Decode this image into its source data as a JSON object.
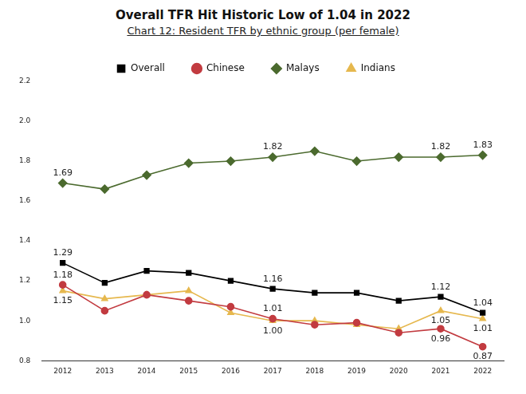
{
  "chart_data": {
    "type": "line",
    "title": "Overall TFR Hit Historic Low of 1.04 in 2022",
    "subtitle": "Chart 12: Resident TFR by ethnic group (per female)",
    "categories": [
      "2012",
      "2013",
      "2014",
      "2015",
      "2016",
      "2017",
      "2018",
      "2019",
      "2020",
      "2021",
      "2022"
    ],
    "series": [
      {
        "name": "Overall",
        "color": "#000000",
        "marker": "square",
        "values": [
          1.29,
          1.19,
          1.25,
          1.24,
          1.2,
          1.16,
          1.14,
          1.14,
          1.1,
          1.12,
          1.04
        ],
        "value_labels": [
          "1.29",
          null,
          null,
          null,
          null,
          "1.16",
          null,
          null,
          null,
          "1.12",
          "1.04"
        ]
      },
      {
        "name": "Chinese",
        "color": "#c23b40",
        "marker": "circle",
        "values": [
          1.18,
          1.05,
          1.13,
          1.1,
          1.07,
          1.01,
          0.98,
          0.99,
          0.94,
          0.96,
          0.87
        ],
        "value_labels": [
          "1.18",
          null,
          null,
          null,
          null,
          "1.01",
          null,
          null,
          null,
          "0.96",
          "0.87"
        ]
      },
      {
        "name": "Malays",
        "color": "#4b6a2e",
        "marker": "diamond",
        "values": [
          1.69,
          1.66,
          1.73,
          1.79,
          1.8,
          1.82,
          1.85,
          1.8,
          1.82,
          1.82,
          1.83
        ],
        "value_labels": [
          "1.69",
          null,
          null,
          null,
          null,
          "1.82",
          null,
          null,
          null,
          "1.82",
          "1.83"
        ]
      },
      {
        "name": "Indians",
        "color": "#e6b84e",
        "marker": "triangle",
        "values": [
          1.15,
          1.11,
          1.13,
          1.15,
          1.04,
          1.0,
          1.0,
          0.98,
          0.96,
          1.05,
          1.01
        ],
        "value_labels": [
          "1.15",
          null,
          null,
          null,
          null,
          "1.00",
          null,
          null,
          null,
          "1.05",
          "1.01"
        ]
      }
    ],
    "ylim": [
      0.8,
      2.2
    ],
    "yticks": [
      0.8,
      {
        "value": 1,
        "label": "1.0"
      },
      1.2,
      1.4,
      1.6,
      1.8,
      {
        "value": 2,
        "label": "2.0"
      },
      2.2
    ],
    "grid": false,
    "legend": "top",
    "data_labels": true
  }
}
